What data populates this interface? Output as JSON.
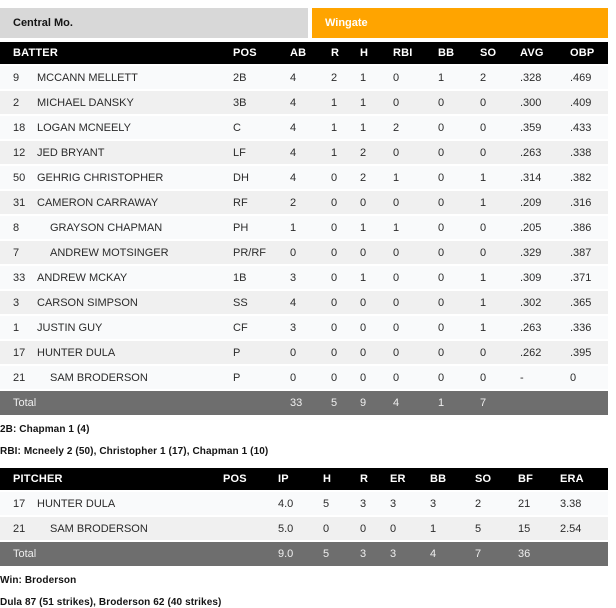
{
  "colors": {
    "accent_orange": "#ffa400",
    "inactive_tab_gray": "#d8d8d8",
    "header_black": "#000000",
    "total_row_gray": "#6e6e6e",
    "row_shade": "#f0f0f0"
  },
  "tabs": [
    {
      "label": "Central Mo.",
      "active": false
    },
    {
      "label": "Wingate",
      "active": true
    }
  ],
  "batting": {
    "columns": [
      "BATTER",
      "POS",
      "AB",
      "R",
      "H",
      "RBI",
      "BB",
      "SO",
      "AVG",
      "OBP"
    ],
    "rows": [
      {
        "num": "9",
        "name": "MCCANN MELLETT",
        "sub": false,
        "pos": "2B",
        "ab": "4",
        "r": "2",
        "h": "1",
        "rbi": "0",
        "bb": "1",
        "so": "2",
        "avg": ".328",
        "obp": ".469"
      },
      {
        "num": "2",
        "name": "MICHAEL DANSKY",
        "sub": false,
        "pos": "3B",
        "ab": "4",
        "r": "1",
        "h": "1",
        "rbi": "0",
        "bb": "0",
        "so": "0",
        "avg": ".300",
        "obp": ".409"
      },
      {
        "num": "18",
        "name": "LOGAN MCNEELY",
        "sub": false,
        "pos": "C",
        "ab": "4",
        "r": "1",
        "h": "1",
        "rbi": "2",
        "bb": "0",
        "so": "0",
        "avg": ".359",
        "obp": ".433"
      },
      {
        "num": "12",
        "name": "JED BRYANT",
        "sub": false,
        "pos": "LF",
        "ab": "4",
        "r": "1",
        "h": "2",
        "rbi": "0",
        "bb": "0",
        "so": "0",
        "avg": ".263",
        "obp": ".338"
      },
      {
        "num": "50",
        "name": "GEHRIG CHRISTOPHER",
        "sub": false,
        "pos": "DH",
        "ab": "4",
        "r": "0",
        "h": "2",
        "rbi": "1",
        "bb": "0",
        "so": "1",
        "avg": ".314",
        "obp": ".382"
      },
      {
        "num": "31",
        "name": "CAMERON CARRAWAY",
        "sub": false,
        "pos": "RF",
        "ab": "2",
        "r": "0",
        "h": "0",
        "rbi": "0",
        "bb": "0",
        "so": "1",
        "avg": ".209",
        "obp": ".316"
      },
      {
        "num": "8",
        "name": "GRAYSON CHAPMAN",
        "sub": true,
        "pos": "PH",
        "ab": "1",
        "r": "0",
        "h": "1",
        "rbi": "1",
        "bb": "0",
        "so": "0",
        "avg": ".205",
        "obp": ".386"
      },
      {
        "num": "7",
        "name": "ANDREW MOTSINGER",
        "sub": true,
        "pos": "PR/RF",
        "ab": "0",
        "r": "0",
        "h": "0",
        "rbi": "0",
        "bb": "0",
        "so": "0",
        "avg": ".329",
        "obp": ".387"
      },
      {
        "num": "33",
        "name": "ANDREW MCKAY",
        "sub": false,
        "pos": "1B",
        "ab": "3",
        "r": "0",
        "h": "1",
        "rbi": "0",
        "bb": "0",
        "so": "1",
        "avg": ".309",
        "obp": ".371"
      },
      {
        "num": "3",
        "name": "CARSON SIMPSON",
        "sub": false,
        "pos": "SS",
        "ab": "4",
        "r": "0",
        "h": "0",
        "rbi": "0",
        "bb": "0",
        "so": "1",
        "avg": ".302",
        "obp": ".365"
      },
      {
        "num": "1",
        "name": "JUSTIN GUY",
        "sub": false,
        "pos": "CF",
        "ab": "3",
        "r": "0",
        "h": "0",
        "rbi": "0",
        "bb": "0",
        "so": "1",
        "avg": ".263",
        "obp": ".336"
      },
      {
        "num": "17",
        "name": "HUNTER DULA",
        "sub": false,
        "pos": "P",
        "ab": "0",
        "r": "0",
        "h": "0",
        "rbi": "0",
        "bb": "0",
        "so": "0",
        "avg": ".262",
        "obp": ".395"
      },
      {
        "num": "21",
        "name": "SAM BRODERSON",
        "sub": true,
        "pos": "P",
        "ab": "0",
        "r": "0",
        "h": "0",
        "rbi": "0",
        "bb": "0",
        "so": "0",
        "avg": "-",
        "obp": "0"
      }
    ],
    "total": {
      "label": "Total",
      "ab": "33",
      "r": "5",
      "h": "9",
      "rbi": "4",
      "bb": "1",
      "so": "7",
      "avg": "",
      "obp": ""
    },
    "notes": [
      "2B: Chapman 1 (4)",
      "RBI: Mcneely 2 (50), Christopher 1 (17), Chapman 1 (10)"
    ]
  },
  "pitching": {
    "columns": [
      "PITCHER",
      "POS",
      "IP",
      "H",
      "R",
      "ER",
      "BB",
      "SO",
      "BF",
      "ERA"
    ],
    "rows": [
      {
        "num": "17",
        "name": "HUNTER DULA",
        "sub": false,
        "pos": "",
        "ip": "4.0",
        "h": "5",
        "r": "3",
        "er": "3",
        "bb": "3",
        "so": "2",
        "bf": "21",
        "era": "3.38"
      },
      {
        "num": "21",
        "name": "SAM BRODERSON",
        "sub": true,
        "pos": "",
        "ip": "5.0",
        "h": "0",
        "r": "0",
        "er": "0",
        "bb": "1",
        "so": "5",
        "bf": "15",
        "era": "2.54"
      }
    ],
    "total": {
      "label": "Total",
      "ip": "9.0",
      "h": "5",
      "r": "3",
      "er": "3",
      "bb": "4",
      "so": "7",
      "bf": "36",
      "era": ""
    },
    "notes": [
      "Win: Broderson",
      "Dula 87 (51 strikes), Broderson 62 (40 strikes)"
    ]
  }
}
